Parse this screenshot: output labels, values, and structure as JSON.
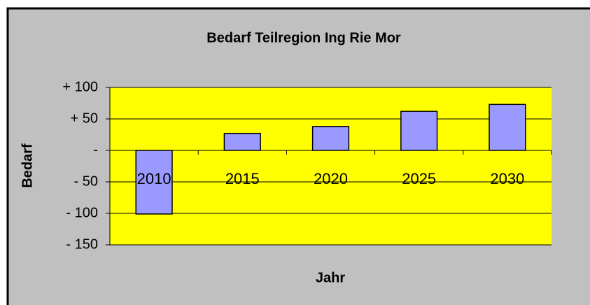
{
  "chart_data": {
    "type": "bar",
    "title": "Bedarf Teilregion Ing Rie Mor",
    "x_label": "Jahr",
    "y_label": "Bedarf",
    "categories": [
      "2010",
      "2015",
      "2020",
      "2025",
      "2030"
    ],
    "values": [
      -101,
      27,
      38,
      62,
      73
    ],
    "color": "#9999ff",
    "ylim": [
      -150,
      100
    ],
    "yticks": [
      {
        "value": -150,
        "label": "- 150"
      },
      {
        "value": -100,
        "label": "- 100"
      },
      {
        "value": -50,
        "label": "- 50"
      },
      {
        "value": 0,
        "label": "-"
      },
      {
        "value": 50,
        "label": "+ 50"
      },
      {
        "value": 100,
        "label": "+ 100"
      }
    ],
    "grid": true
  }
}
